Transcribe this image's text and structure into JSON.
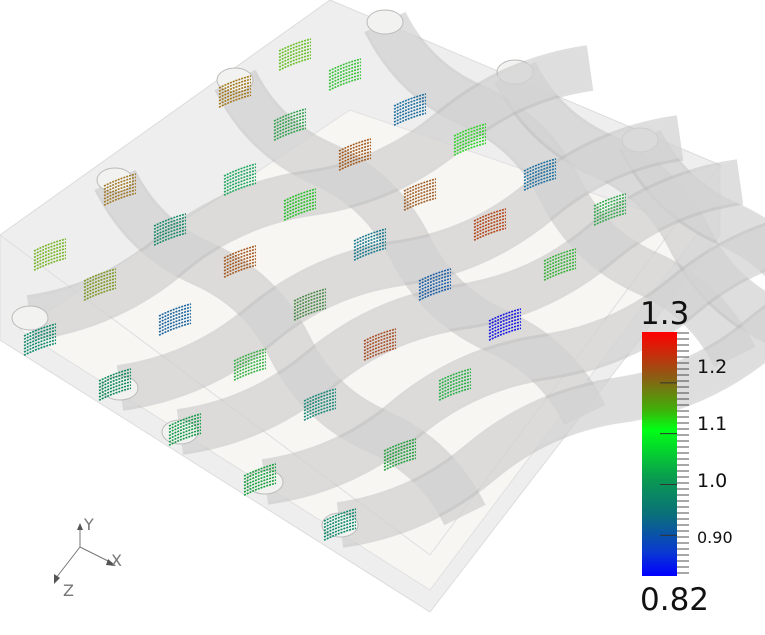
{
  "legend": {
    "max_label": "1.3",
    "min_label": "0.82",
    "range": [
      0.82,
      1.3
    ],
    "ticks": [
      "1.2",
      "1.1",
      "1.0",
      "0.90"
    ],
    "tick_values": [
      1.2,
      1.1,
      1.0,
      0.9
    ],
    "colors": [
      "#0000ff",
      "#00ff00",
      "#ff0000"
    ]
  },
  "axes_triad": {
    "x": "X",
    "y": "Y",
    "z": "Z"
  }
}
